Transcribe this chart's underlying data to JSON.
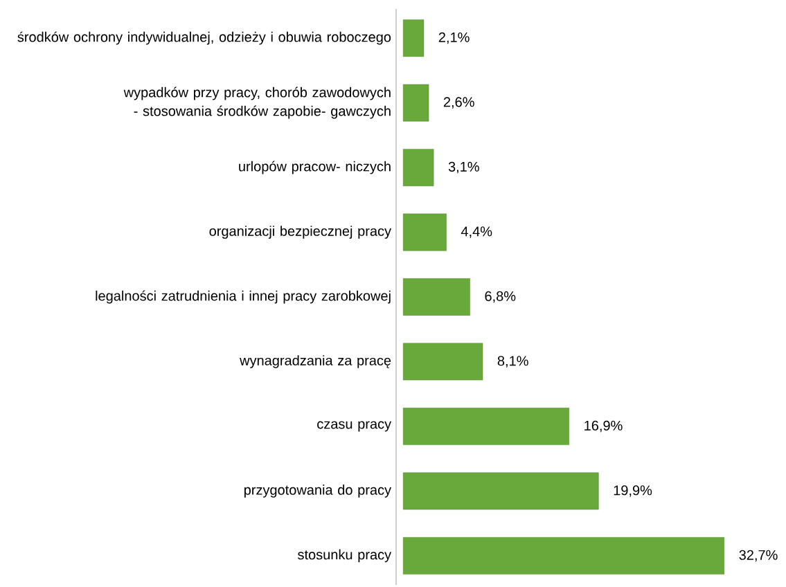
{
  "chart_data": {
    "type": "bar",
    "orientation": "horizontal",
    "categories": [
      "środków ochrony indywidualnej, odzieży i obuwia roboczego",
      "wypadków przy pracy, chorób zawodowych - stosowania środków zapobie- gawczych",
      "urlopów pracow- niczych",
      "organizacji bezpiecznej pracy",
      "legalności zatrudnienia i innej pracy zarobkowej",
      "wynagradzania za pracę",
      "czasu pracy",
      "przygotowania do pracy",
      "stosunku pracy"
    ],
    "values": [
      2.1,
      2.6,
      3.1,
      4.4,
      6.8,
      8.1,
      16.9,
      19.9,
      32.7
    ],
    "value_labels": [
      "2,1%",
      "2,6%",
      "3,1%",
      "4,4%",
      "6,8%",
      "8,1%",
      "16,9%",
      "19,9%",
      "32,7%"
    ],
    "color": "#69a83a"
  }
}
